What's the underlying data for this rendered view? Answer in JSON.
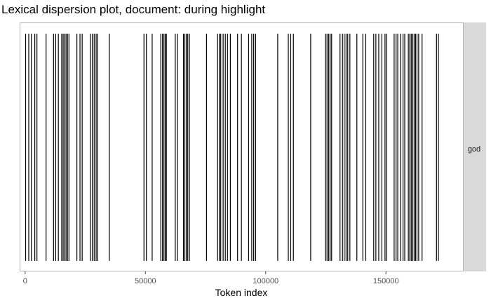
{
  "chart_data": {
    "type": "dispersion",
    "title": "Lexical dispersion plot, document: during highlight",
    "xlabel": "Token index",
    "ylabel": "",
    "facet_label": "god",
    "xlim": [
      -2000,
      182000
    ],
    "xticks": [
      0,
      50000,
      100000,
      150000
    ],
    "xtick_labels": [
      "0",
      "50000",
      "100000",
      "150000"
    ],
    "colors": {
      "mark": "#000000",
      "panel_border": "#b3b3b3",
      "strip_bg": "#d9d9d9",
      "tick": "#4d4d4d"
    },
    "positions": [
      200,
      1500,
      2600,
      4000,
      4900,
      8700,
      11800,
      12700,
      13800,
      15200,
      15800,
      16400,
      17000,
      17600,
      18200,
      21500,
      22800,
      23700,
      27100,
      27900,
      28700,
      29500,
      30100,
      35000,
      49400,
      50400,
      52800,
      56400,
      57100,
      57700,
      58300,
      58700,
      62400,
      63300,
      65800,
      66400,
      67000,
      67600,
      68300,
      75400,
      80000,
      80700,
      81300,
      82300,
      83200,
      84100,
      85300,
      88300,
      89900,
      92900,
      94200,
      95000,
      95800,
      105000,
      109400,
      110400,
      111500,
      118700,
      124900,
      125500,
      126200,
      126800,
      127400,
      130900,
      131900,
      132600,
      133400,
      134100,
      135000,
      137900,
      140400,
      141600,
      144900,
      145800,
      147000,
      148300,
      149600,
      150300,
      153400,
      154200,
      154900,
      156100,
      157100,
      157800,
      159300,
      159900,
      160500,
      161100,
      161700,
      162300,
      162900,
      163600,
      165000,
      171000,
      171800
    ]
  }
}
